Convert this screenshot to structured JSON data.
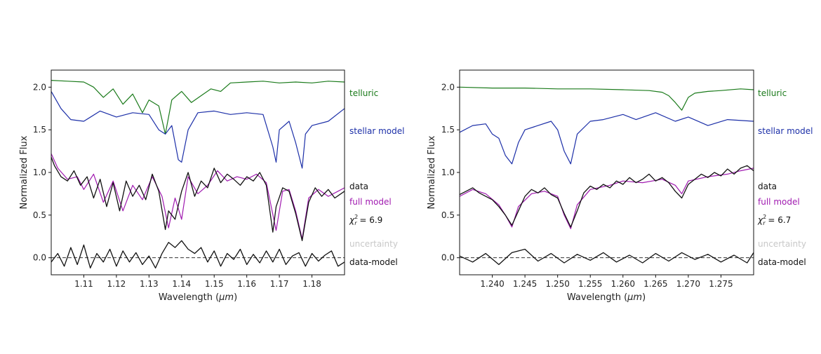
{
  "figure": {
    "title": ""
  },
  "chart_data": [
    {
      "type": "line",
      "panel": "left",
      "xlabel_pre": "Wavelength (",
      "xlabel_unit": "μm",
      "xlabel_post": ")",
      "ylabel": "Normalized Flux",
      "xlim": [
        1.1,
        1.19
      ],
      "ylim": [
        -0.2,
        2.2
      ],
      "xticks": [
        {
          "value": 1.11,
          "label": "1.11"
        },
        {
          "value": 1.12,
          "label": "1.12"
        },
        {
          "value": 1.13,
          "label": "1.13"
        },
        {
          "value": 1.14,
          "label": "1.14"
        },
        {
          "value": 1.15,
          "label": "1.15"
        },
        {
          "value": 1.16,
          "label": "1.16"
        },
        {
          "value": 1.17,
          "label": "1.17"
        },
        {
          "value": 1.18,
          "label": "1.18"
        }
      ],
      "yticks": [
        {
          "value": 0.0,
          "label": "0.0"
        },
        {
          "value": 0.5,
          "label": "0.5"
        },
        {
          "value": 1.0,
          "label": "1.0"
        },
        {
          "value": 1.5,
          "label": "1.5"
        },
        {
          "value": 2.0,
          "label": "2.0"
        }
      ],
      "zero_line": {
        "y": 0.0,
        "style": "dashed"
      },
      "chi2": {
        "prefix": "χ",
        "sup": "2",
        "sub": "r",
        "equals": " = ",
        "value": "6.9"
      },
      "series": [
        {
          "key": "telluric",
          "name": "telluric",
          "color": "#1a7a1a",
          "x": [
            1.1,
            1.105,
            1.11,
            1.113,
            1.116,
            1.119,
            1.122,
            1.125,
            1.128,
            1.13,
            1.133,
            1.135,
            1.137,
            1.14,
            1.143,
            1.146,
            1.149,
            1.152,
            1.155,
            1.16,
            1.165,
            1.17,
            1.175,
            1.18,
            1.185,
            1.19
          ],
          "y": [
            2.08,
            2.07,
            2.06,
            2.0,
            1.88,
            1.98,
            1.8,
            1.92,
            1.7,
            1.85,
            1.78,
            1.45,
            1.85,
            1.95,
            1.82,
            1.9,
            1.98,
            1.95,
            2.05,
            2.06,
            2.07,
            2.05,
            2.06,
            2.05,
            2.07,
            2.06
          ]
        },
        {
          "key": "stellar",
          "name": "stellar model",
          "color": "#1c2fa8",
          "x": [
            1.1,
            1.103,
            1.106,
            1.11,
            1.115,
            1.12,
            1.125,
            1.13,
            1.133,
            1.135,
            1.137,
            1.139,
            1.14,
            1.142,
            1.145,
            1.15,
            1.155,
            1.16,
            1.165,
            1.168,
            1.169,
            1.17,
            1.173,
            1.175,
            1.177,
            1.178,
            1.18,
            1.185,
            1.19
          ],
          "y": [
            1.95,
            1.75,
            1.62,
            1.6,
            1.72,
            1.65,
            1.7,
            1.68,
            1.5,
            1.45,
            1.55,
            1.15,
            1.12,
            1.5,
            1.7,
            1.72,
            1.68,
            1.7,
            1.68,
            1.3,
            1.12,
            1.5,
            1.6,
            1.35,
            1.05,
            1.45,
            1.55,
            1.6,
            1.75
          ]
        },
        {
          "key": "full",
          "name": "full model",
          "color": "#a01ab0",
          "x": [
            1.1,
            1.102,
            1.105,
            1.108,
            1.11,
            1.113,
            1.116,
            1.119,
            1.122,
            1.125,
            1.128,
            1.131,
            1.134,
            1.136,
            1.138,
            1.14,
            1.142,
            1.145,
            1.148,
            1.151,
            1.154,
            1.157,
            1.16,
            1.163,
            1.166,
            1.169,
            1.171,
            1.173,
            1.175,
            1.177,
            1.179,
            1.182,
            1.185,
            1.188,
            1.19
          ],
          "y": [
            1.22,
            1.05,
            0.92,
            0.95,
            0.8,
            0.98,
            0.65,
            0.9,
            0.55,
            0.85,
            0.68,
            0.95,
            0.72,
            0.35,
            0.7,
            0.45,
            0.95,
            0.75,
            0.85,
            1.02,
            0.9,
            0.95,
            0.92,
            0.98,
            0.88,
            0.32,
            0.78,
            0.8,
            0.55,
            0.22,
            0.7,
            0.8,
            0.72,
            0.78,
            0.82
          ]
        },
        {
          "key": "data",
          "name": "data",
          "color": "#111111",
          "x": [
            1.1,
            1.101,
            1.103,
            1.105,
            1.107,
            1.109,
            1.111,
            1.113,
            1.115,
            1.117,
            1.119,
            1.121,
            1.123,
            1.125,
            1.127,
            1.129,
            1.131,
            1.133,
            1.135,
            1.136,
            1.138,
            1.14,
            1.142,
            1.144,
            1.146,
            1.148,
            1.15,
            1.152,
            1.154,
            1.156,
            1.158,
            1.16,
            1.162,
            1.164,
            1.166,
            1.168,
            1.169,
            1.171,
            1.173,
            1.175,
            1.177,
            1.179,
            1.181,
            1.183,
            1.185,
            1.187,
            1.19
          ],
          "y": [
            1.18,
            1.08,
            0.95,
            0.9,
            1.02,
            0.85,
            0.95,
            0.7,
            0.92,
            0.6,
            0.88,
            0.55,
            0.9,
            0.72,
            0.85,
            0.68,
            0.98,
            0.78,
            0.33,
            0.55,
            0.45,
            0.78,
            1.0,
            0.72,
            0.9,
            0.82,
            1.05,
            0.88,
            0.98,
            0.92,
            0.85,
            0.95,
            0.9,
            1.0,
            0.85,
            0.3,
            0.6,
            0.82,
            0.78,
            0.52,
            0.2,
            0.65,
            0.82,
            0.72,
            0.8,
            0.7,
            0.78
          ]
        },
        {
          "key": "uncertainty",
          "name": "uncertainty",
          "color": "#c8c8c8",
          "x": [],
          "y": []
        },
        {
          "key": "residual",
          "name": "data-model",
          "color": "#111111",
          "x": [
            1.1,
            1.102,
            1.104,
            1.106,
            1.108,
            1.11,
            1.112,
            1.114,
            1.116,
            1.118,
            1.12,
            1.122,
            1.124,
            1.126,
            1.128,
            1.13,
            1.132,
            1.134,
            1.136,
            1.138,
            1.14,
            1.142,
            1.144,
            1.146,
            1.148,
            1.15,
            1.152,
            1.154,
            1.156,
            1.158,
            1.16,
            1.162,
            1.164,
            1.166,
            1.168,
            1.17,
            1.172,
            1.174,
            1.176,
            1.178,
            1.18,
            1.182,
            1.184,
            1.186,
            1.188,
            1.19
          ],
          "y": [
            -0.05,
            0.05,
            -0.1,
            0.12,
            -0.08,
            0.15,
            -0.12,
            0.05,
            -0.05,
            0.1,
            -0.1,
            0.08,
            -0.05,
            0.06,
            -0.08,
            0.02,
            -0.12,
            0.05,
            0.18,
            0.12,
            0.2,
            0.1,
            0.05,
            0.12,
            -0.05,
            0.08,
            -0.1,
            0.05,
            -0.02,
            0.1,
            -0.08,
            0.04,
            -0.06,
            0.08,
            -0.05,
            0.1,
            -0.08,
            0.02,
            0.06,
            -0.1,
            0.05,
            -0.04,
            0.03,
            0.08,
            -0.1,
            -0.05
          ]
        }
      ]
    },
    {
      "type": "line",
      "panel": "right",
      "xlabel_pre": "Wavelength (",
      "xlabel_unit": "μm",
      "xlabel_post": ")",
      "ylabel": "Normalized Flux",
      "xlim": [
        1.235,
        1.28
      ],
      "ylim": [
        -0.2,
        2.2
      ],
      "xticks": [
        {
          "value": 1.24,
          "label": "1.240"
        },
        {
          "value": 1.245,
          "label": "1.245"
        },
        {
          "value": 1.25,
          "label": "1.250"
        },
        {
          "value": 1.255,
          "label": "1.255"
        },
        {
          "value": 1.26,
          "label": "1.260"
        },
        {
          "value": 1.265,
          "label": "1.265"
        },
        {
          "value": 1.27,
          "label": "1.270"
        },
        {
          "value": 1.275,
          "label": "1.275"
        }
      ],
      "yticks": [
        {
          "value": 0.0,
          "label": "0.0"
        },
        {
          "value": 0.5,
          "label": "0.5"
        },
        {
          "value": 1.0,
          "label": "1.0"
        },
        {
          "value": 1.5,
          "label": "1.5"
        },
        {
          "value": 2.0,
          "label": "2.0"
        }
      ],
      "zero_line": {
        "y": 0.0,
        "style": "dashed"
      },
      "chi2": {
        "prefix": "χ",
        "sup": "2",
        "sub": "r",
        "equals": " = ",
        "value": "6.7"
      },
      "series": [
        {
          "key": "telluric",
          "name": "telluric",
          "color": "#1a7a1a",
          "x": [
            1.235,
            1.24,
            1.245,
            1.25,
            1.255,
            1.26,
            1.264,
            1.266,
            1.267,
            1.268,
            1.269,
            1.27,
            1.271,
            1.273,
            1.275,
            1.278,
            1.28
          ],
          "y": [
            2.0,
            1.99,
            1.99,
            1.98,
            1.98,
            1.97,
            1.96,
            1.94,
            1.9,
            1.82,
            1.73,
            1.88,
            1.93,
            1.95,
            1.96,
            1.98,
            1.97
          ]
        },
        {
          "key": "stellar",
          "name": "stellar model",
          "color": "#1c2fa8",
          "x": [
            1.235,
            1.237,
            1.239,
            1.24,
            1.241,
            1.242,
            1.243,
            1.244,
            1.245,
            1.247,
            1.249,
            1.25,
            1.251,
            1.252,
            1.253,
            1.255,
            1.257,
            1.26,
            1.262,
            1.265,
            1.268,
            1.27,
            1.273,
            1.276,
            1.28
          ],
          "y": [
            1.47,
            1.55,
            1.57,
            1.45,
            1.4,
            1.2,
            1.1,
            1.35,
            1.5,
            1.55,
            1.6,
            1.5,
            1.25,
            1.1,
            1.45,
            1.6,
            1.62,
            1.68,
            1.62,
            1.7,
            1.6,
            1.65,
            1.55,
            1.62,
            1.6
          ]
        },
        {
          "key": "full",
          "name": "full model",
          "color": "#a01ab0",
          "x": [
            1.235,
            1.237,
            1.239,
            1.241,
            1.242,
            1.243,
            1.244,
            1.246,
            1.248,
            1.25,
            1.251,
            1.252,
            1.253,
            1.255,
            1.258,
            1.26,
            1.263,
            1.266,
            1.268,
            1.269,
            1.27,
            1.273,
            1.276,
            1.278,
            1.28
          ],
          "y": [
            0.72,
            0.8,
            0.75,
            0.62,
            0.5,
            0.36,
            0.6,
            0.75,
            0.78,
            0.72,
            0.5,
            0.34,
            0.62,
            0.8,
            0.85,
            0.9,
            0.88,
            0.92,
            0.85,
            0.75,
            0.9,
            0.95,
            0.98,
            1.02,
            1.05
          ]
        },
        {
          "key": "data",
          "name": "data",
          "color": "#111111",
          "x": [
            1.235,
            1.236,
            1.237,
            1.238,
            1.239,
            1.24,
            1.241,
            1.242,
            1.243,
            1.244,
            1.245,
            1.246,
            1.247,
            1.248,
            1.249,
            1.25,
            1.251,
            1.252,
            1.253,
            1.254,
            1.255,
            1.256,
            1.257,
            1.258,
            1.259,
            1.26,
            1.261,
            1.262,
            1.263,
            1.264,
            1.265,
            1.266,
            1.267,
            1.268,
            1.269,
            1.27,
            1.271,
            1.272,
            1.273,
            1.274,
            1.275,
            1.276,
            1.277,
            1.278,
            1.279,
            1.28
          ],
          "y": [
            0.74,
            0.78,
            0.82,
            0.76,
            0.72,
            0.68,
            0.6,
            0.5,
            0.38,
            0.55,
            0.72,
            0.8,
            0.76,
            0.82,
            0.74,
            0.7,
            0.52,
            0.36,
            0.55,
            0.76,
            0.84,
            0.8,
            0.86,
            0.82,
            0.9,
            0.86,
            0.94,
            0.88,
            0.92,
            0.98,
            0.9,
            0.94,
            0.88,
            0.78,
            0.7,
            0.86,
            0.92,
            0.98,
            0.94,
            1.0,
            0.96,
            1.04,
            0.98,
            1.05,
            1.08,
            1.02
          ]
        },
        {
          "key": "uncertainty",
          "name": "uncertainty",
          "color": "#c8c8c8",
          "x": [],
          "y": []
        },
        {
          "key": "residual",
          "name": "data-model",
          "color": "#111111",
          "x": [
            1.235,
            1.237,
            1.239,
            1.241,
            1.243,
            1.245,
            1.247,
            1.249,
            1.251,
            1.253,
            1.255,
            1.257,
            1.259,
            1.261,
            1.263,
            1.265,
            1.267,
            1.269,
            1.271,
            1.273,
            1.275,
            1.277,
            1.279,
            1.28
          ],
          "y": [
            0.02,
            -0.05,
            0.05,
            -0.08,
            0.06,
            0.1,
            -0.04,
            0.05,
            -0.06,
            0.04,
            -0.03,
            0.06,
            -0.05,
            0.03,
            -0.06,
            0.05,
            -0.04,
            0.06,
            -0.02,
            0.04,
            -0.05,
            0.03,
            -0.06,
            0.06
          ]
        }
      ]
    }
  ]
}
